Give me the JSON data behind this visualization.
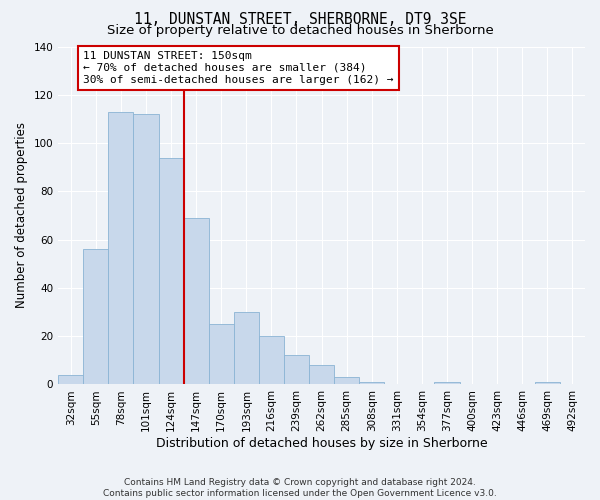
{
  "title": "11, DUNSTAN STREET, SHERBORNE, DT9 3SE",
  "subtitle": "Size of property relative to detached houses in Sherborne",
  "xlabel": "Distribution of detached houses by size in Sherborne",
  "ylabel": "Number of detached properties",
  "bar_labels": [
    "32sqm",
    "55sqm",
    "78sqm",
    "101sqm",
    "124sqm",
    "147sqm",
    "170sqm",
    "193sqm",
    "216sqm",
    "239sqm",
    "262sqm",
    "285sqm",
    "308sqm",
    "331sqm",
    "354sqm",
    "377sqm",
    "400sqm",
    "423sqm",
    "446sqm",
    "469sqm",
    "492sqm"
  ],
  "bar_values": [
    4,
    56,
    113,
    112,
    94,
    69,
    25,
    30,
    20,
    12,
    8,
    3,
    1,
    0,
    0,
    1,
    0,
    0,
    0,
    1,
    0
  ],
  "bar_color": "#c8d8eb",
  "bar_edgecolor": "#8ab4d4",
  "vline_color": "#cc0000",
  "vline_index": 4.5,
  "ylim": [
    0,
    140
  ],
  "yticks": [
    0,
    20,
    40,
    60,
    80,
    100,
    120,
    140
  ],
  "annotation_text": "11 DUNSTAN STREET: 150sqm\n← 70% of detached houses are smaller (384)\n30% of semi-detached houses are larger (162) →",
  "annotation_box_facecolor": "#ffffff",
  "annotation_box_edgecolor": "#cc0000",
  "footer_line1": "Contains HM Land Registry data © Crown copyright and database right 2024.",
  "footer_line2": "Contains public sector information licensed under the Open Government Licence v3.0.",
  "background_color": "#eef2f7",
  "plot_background_color": "#eef2f7",
  "grid_color": "#ffffff",
  "title_fontsize": 10.5,
  "subtitle_fontsize": 9.5,
  "xlabel_fontsize": 9,
  "ylabel_fontsize": 8.5,
  "tick_fontsize": 7.5,
  "annotation_fontsize": 8,
  "footer_fontsize": 6.5
}
